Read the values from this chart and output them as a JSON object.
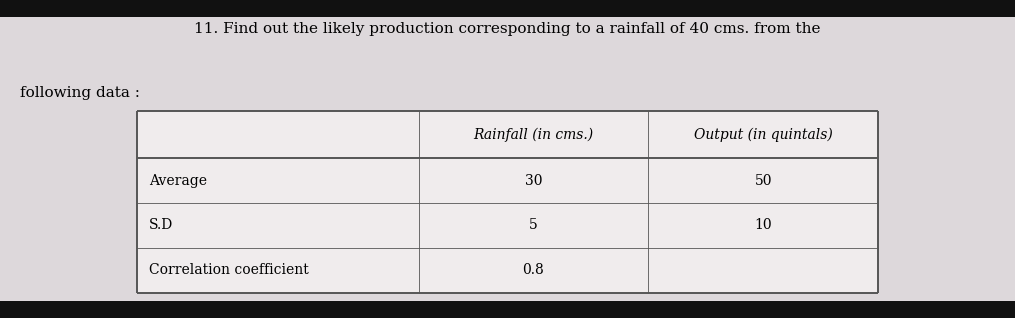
{
  "title_line1": "11. Find out the likely production corresponding to a rainfall of 40 cms. from the",
  "title_line2": "following data :",
  "col_headers": [
    "",
    "Rainfall (in cms.)",
    "Output (in quintals)"
  ],
  "rows": [
    [
      "Average",
      "30",
      "50"
    ],
    [
      "S.D",
      "5",
      "10"
    ],
    [
      "Correlation coefficient",
      "0.8",
      ""
    ]
  ],
  "bg_color": "#ddd8db",
  "table_bg": "#f0eced",
  "black_bar_color": "#111111",
  "title_fontsize": 11,
  "cell_fontsize": 10,
  "header_fontsize": 10,
  "line_color": "#555555"
}
